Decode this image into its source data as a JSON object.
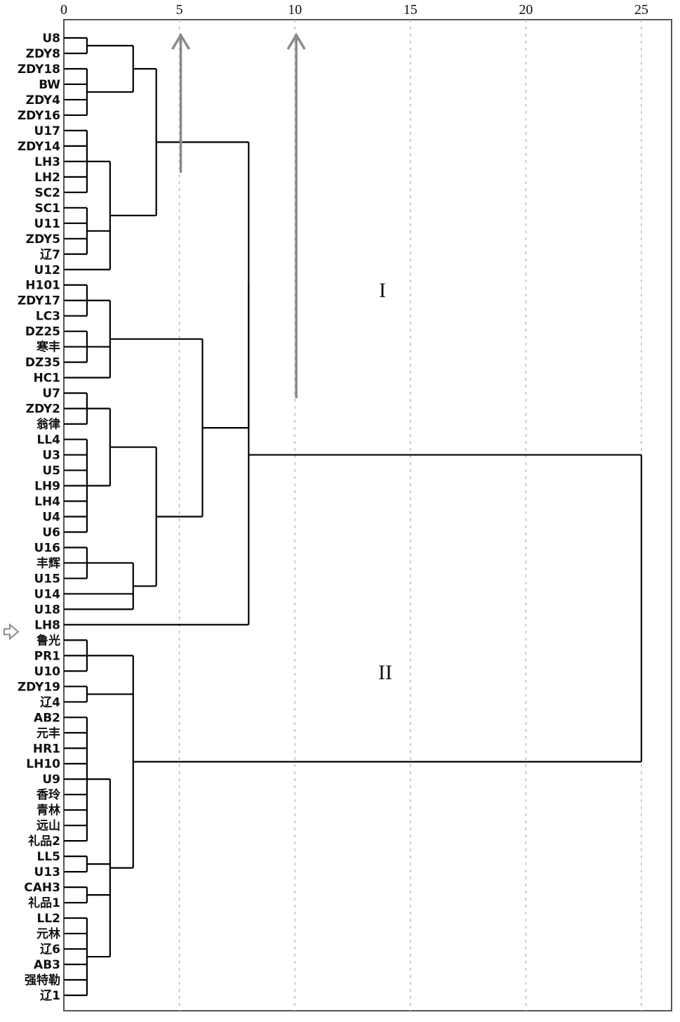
{
  "chart_data": {
    "type": "dendrogram",
    "orientation": "horizontal",
    "axis": {
      "min": 0,
      "max": 25,
      "ticks": [
        0,
        5,
        10,
        15,
        20,
        25
      ],
      "position": "top",
      "grid": "dashed"
    },
    "leaves": [
      "U8",
      "ZDY8",
      "ZDY18",
      "BW",
      "ZDY4",
      "ZDY16",
      "U17",
      "ZDY14",
      "LH3",
      "LH2",
      "SC2",
      "SC1",
      "U11",
      "ZDY5",
      "辽7",
      "U12",
      "H101",
      "ZDY17",
      "LC3",
      "DZ25",
      "寒丰",
      "DZ35",
      "HC1",
      "U7",
      "ZDY2",
      "翁律",
      "LL4",
      "U3",
      "U5",
      "LH9",
      "LH4",
      "U4",
      "U6",
      "U16",
      "丰辉",
      "U15",
      "U14",
      "U18",
      "LH8",
      "鲁光",
      "PR1",
      "U10",
      "ZDY19",
      "辽4",
      "AB2",
      "元丰",
      "HR1",
      "LH10",
      "U9",
      "香玲",
      "青林",
      "远山",
      "礼品2",
      "LL5",
      "U13",
      "CAH3",
      "礼品1",
      "LL2",
      "元林",
      "辽6",
      "AB3",
      "强特勒",
      "辽1"
    ],
    "merges": [
      {
        "id": "a1",
        "children": [
          "l:0",
          "l:1"
        ],
        "height": 1
      },
      {
        "id": "a2",
        "children": [
          "l:2",
          "l:3",
          "l:4",
          "l:5"
        ],
        "height": 1
      },
      {
        "id": "a3",
        "children": [
          "c:a1",
          "c:a2"
        ],
        "height": 3
      },
      {
        "id": "b1",
        "children": [
          "l:6",
          "l:7",
          "l:8",
          "l:9",
          "l:10"
        ],
        "height": 1
      },
      {
        "id": "b2",
        "children": [
          "l:11",
          "l:12",
          "l:13",
          "l:14"
        ],
        "height": 1
      },
      {
        "id": "b3",
        "children": [
          "c:b1",
          "c:b2",
          "l:15"
        ],
        "height": 2
      },
      {
        "id": "ab",
        "children": [
          "c:a3",
          "c:b3"
        ],
        "height": 4
      },
      {
        "id": "c1",
        "children": [
          "l:16",
          "l:17",
          "l:18"
        ],
        "height": 1
      },
      {
        "id": "c2",
        "children": [
          "l:19",
          "l:20",
          "l:21"
        ],
        "height": 1
      },
      {
        "id": "c3",
        "children": [
          "c:c1",
          "c:c2",
          "l:22"
        ],
        "height": 2
      },
      {
        "id": "d1",
        "children": [
          "l:23",
          "l:24",
          "l:25"
        ],
        "height": 1
      },
      {
        "id": "d2",
        "children": [
          "l:26",
          "l:27",
          "l:28",
          "l:29",
          "l:30",
          "l:31",
          "l:32"
        ],
        "height": 1
      },
      {
        "id": "d3",
        "children": [
          "c:d1",
          "c:d2"
        ],
        "height": 2
      },
      {
        "id": "e1",
        "children": [
          "l:33",
          "l:34",
          "l:35"
        ],
        "height": 1
      },
      {
        "id": "e2",
        "children": [
          "c:e1",
          "l:36",
          "l:37"
        ],
        "height": 3
      },
      {
        "id": "de",
        "children": [
          "c:d3",
          "c:e2"
        ],
        "height": 4
      },
      {
        "id": "cde",
        "children": [
          "c:c3",
          "c:de"
        ],
        "height": 6
      },
      {
        "id": "abcde",
        "children": [
          "c:ab",
          "c:cde"
        ],
        "height": 8
      },
      {
        "id": "G1",
        "children": [
          "c:abcde",
          "l:38"
        ],
        "height": 8
      },
      {
        "id": "f1",
        "children": [
          "l:39",
          "l:40",
          "l:41"
        ],
        "height": 1
      },
      {
        "id": "f2",
        "children": [
          "l:42",
          "l:43"
        ],
        "height": 1
      },
      {
        "id": "g1",
        "children": [
          "l:44",
          "l:45",
          "l:46",
          "l:47",
          "l:48",
          "l:49",
          "l:50",
          "l:51",
          "l:52"
        ],
        "height": 1
      },
      {
        "id": "g2",
        "children": [
          "l:53",
          "l:54"
        ],
        "height": 1
      },
      {
        "id": "g3",
        "children": [
          "l:55",
          "l:56"
        ],
        "height": 1
      },
      {
        "id": "g4",
        "children": [
          "l:57",
          "l:58",
          "l:59",
          "l:60",
          "l:61",
          "l:62"
        ],
        "height": 1
      },
      {
        "id": "g5",
        "children": [
          "c:g1",
          "c:g2",
          "c:g3",
          "c:g4"
        ],
        "height": 2
      },
      {
        "id": "G2",
        "children": [
          "c:f1",
          "c:f2",
          "c:g5"
        ],
        "height": 3
      },
      {
        "id": "root",
        "children": [
          "c:G1",
          "c:G2"
        ],
        "height": 25
      }
    ],
    "cluster_labels": [
      {
        "text": "I",
        "node": "root-top"
      },
      {
        "text": "II",
        "node": "root-bottom"
      }
    ],
    "arrows": [
      {
        "x": 5,
        "direction": "up"
      },
      {
        "x": 10,
        "direction": "up"
      }
    ],
    "marked_leaf": "LH8",
    "colors": {
      "tree": "#000000",
      "grid": "#b9b9b9",
      "arrow": "#8a8a8a",
      "background": "#ffffff"
    }
  }
}
